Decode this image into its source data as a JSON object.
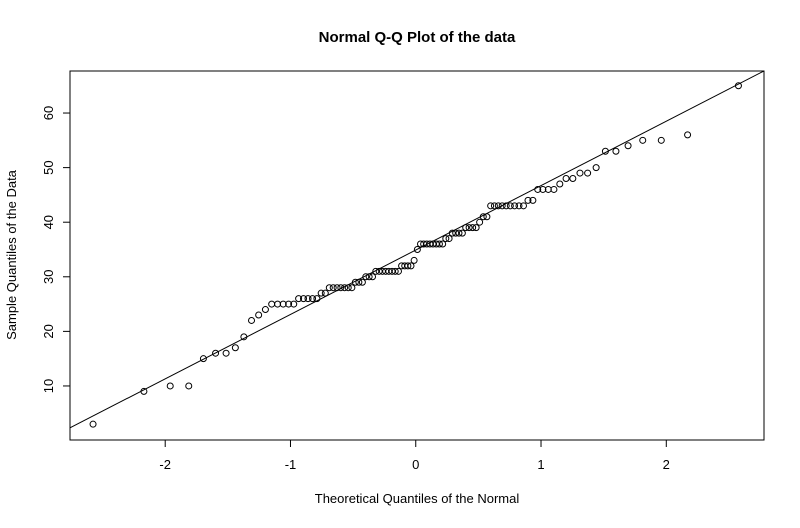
{
  "chart_data": {
    "type": "scatter",
    "title": "Normal Q-Q Plot of the data",
    "x_label": "Theoretical Quantiles of the Normal",
    "y_label": "Sample Quantiles of the Data",
    "color": "#000000",
    "x": [
      -2.576,
      -2.17,
      -1.96,
      -1.812,
      -1.695,
      -1.598,
      -1.514,
      -1.44,
      -1.372,
      -1.311,
      -1.254,
      -1.2,
      -1.15,
      -1.103,
      -1.058,
      -1.015,
      -0.974,
      -0.935,
      -0.896,
      -0.86,
      -0.824,
      -0.789,
      -0.755,
      -0.722,
      -0.69,
      -0.659,
      -0.628,
      -0.598,
      -0.568,
      -0.539,
      -0.51,
      -0.482,
      -0.454,
      -0.426,
      -0.399,
      -0.372,
      -0.345,
      -0.319,
      -0.292,
      -0.266,
      -0.24,
      -0.215,
      -0.189,
      -0.164,
      -0.138,
      -0.113,
      -0.088,
      -0.063,
      -0.038,
      -0.013,
      0.013,
      0.038,
      0.063,
      0.088,
      0.113,
      0.138,
      0.164,
      0.189,
      0.215,
      0.24,
      0.266,
      0.292,
      0.319,
      0.345,
      0.372,
      0.399,
      0.426,
      0.454,
      0.482,
      0.51,
      0.539,
      0.568,
      0.598,
      0.628,
      0.659,
      0.69,
      0.722,
      0.755,
      0.789,
      0.824,
      0.86,
      0.896,
      0.935,
      0.974,
      1.015,
      1.058,
      1.103,
      1.15,
      1.2,
      1.254,
      1.311,
      1.372,
      1.44,
      1.514,
      1.598,
      1.695,
      1.812,
      1.96,
      2.17,
      2.576
    ],
    "values": [
      3,
      9,
      10,
      10,
      15,
      16,
      16,
      17,
      19,
      22,
      23,
      24,
      25,
      25,
      25,
      25,
      25,
      26,
      26,
      26,
      26,
      26,
      27,
      27,
      28,
      28,
      28,
      28,
      28,
      28,
      28,
      29,
      29,
      29,
      30,
      30,
      30,
      31,
      31,
      31,
      31,
      31,
      31,
      31,
      31,
      32,
      32,
      32,
      32,
      33,
      35,
      36,
      36,
      36,
      36,
      36,
      36,
      36,
      36,
      37,
      37,
      38,
      38,
      38,
      38,
      39,
      39,
      39,
      39,
      40,
      41,
      41,
      43,
      43,
      43,
      43,
      43,
      43,
      43,
      43,
      43,
      44,
      44,
      46,
      46,
      46,
      46,
      47,
      48,
      48,
      49,
      49,
      50,
      53,
      53,
      54,
      55,
      55,
      56,
      65
    ],
    "reference_line": {
      "intercept": 34.9,
      "slope": 11.8
    },
    "xlim": [
      -2.76,
      2.78
    ],
    "ylim": [
      0.1,
      67.7
    ],
    "xticks": [
      -2,
      -1,
      0,
      1,
      2
    ],
    "yticks": [
      10,
      20,
      30,
      40,
      50,
      60
    ]
  }
}
